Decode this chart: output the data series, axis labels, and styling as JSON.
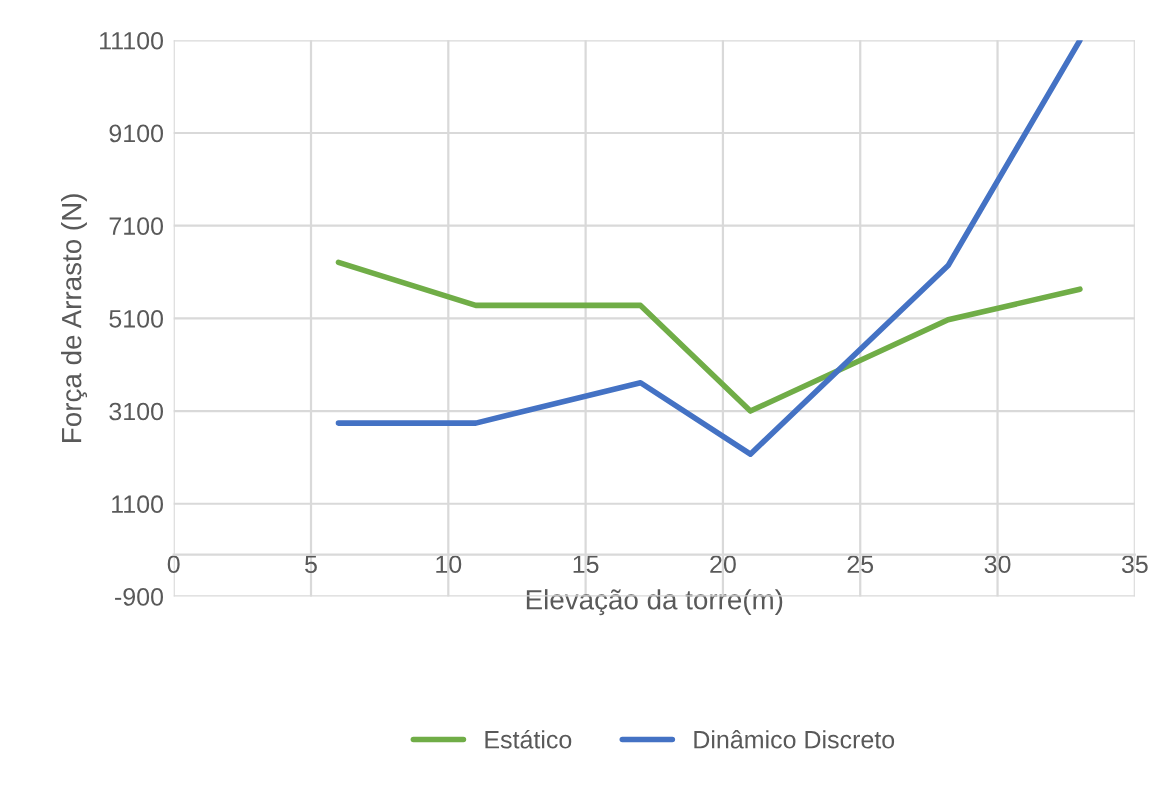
{
  "chart_data": {
    "type": "line",
    "xlabel": "Elevação da torre(m)",
    "ylabel": "Força de Arrasto (N)",
    "xlim": [
      0,
      35
    ],
    "xticks": [
      0,
      5,
      10,
      15,
      20,
      25,
      30,
      35
    ],
    "ylim": [
      -900,
      11100
    ],
    "yticks": [
      -900,
      1100,
      3100,
      5100,
      7100,
      9100,
      11100
    ],
    "x": [
      6,
      11,
      17,
      21,
      28.2,
      33
    ],
    "series": [
      {
        "name": "Estático",
        "color": "#70ad47",
        "values": [
          6310,
          5380,
          5380,
          3100,
          5070,
          5730
        ]
      },
      {
        "name": "Dinâmico Discreto",
        "color": "#4472c4",
        "values": [
          2840,
          2840,
          3710,
          2170,
          6240,
          11100
        ]
      }
    ],
    "grid": true,
    "legend": "bottom",
    "marker": "none",
    "line_style": "solid"
  }
}
